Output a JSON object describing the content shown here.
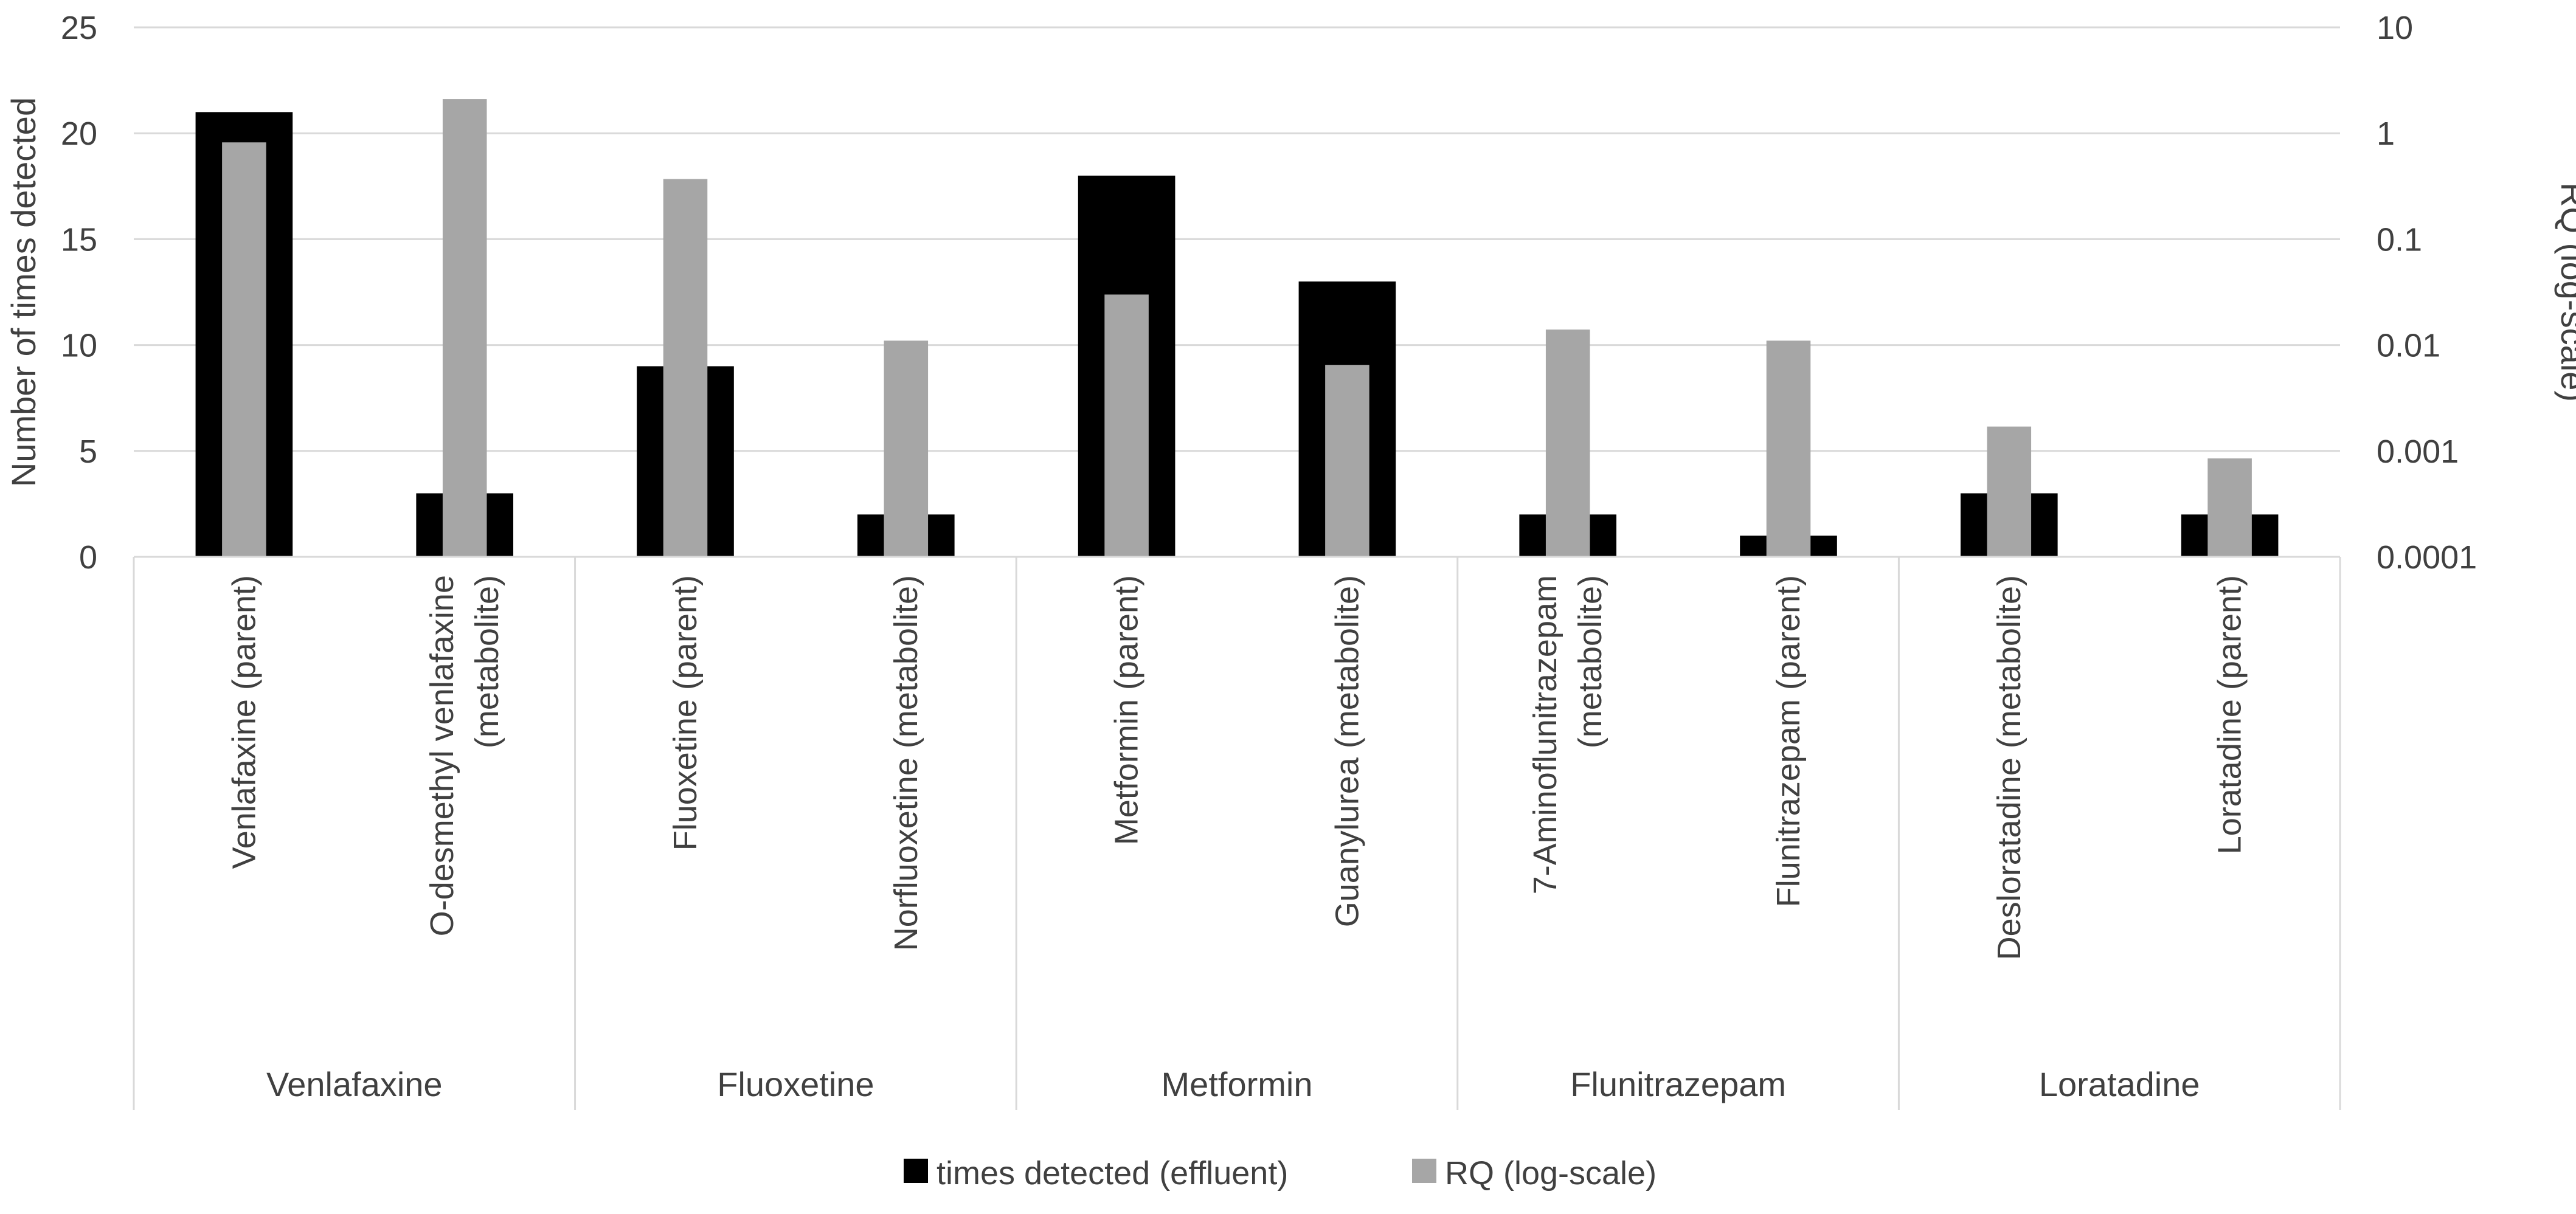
{
  "chart_data": {
    "type": "bar",
    "categories": [
      "Venlafaxine (parent)",
      "O-desmethyl venlafaxine (metabolite)",
      "Fluoxetine (parent)",
      "Norfluoxetine (metabolite)",
      "Metformin (parent)",
      "Guanylurea (metabolite)",
      "7-Aminoflunitrazepam (metabolite)",
      "Flunitrazepam (parent)",
      "Desloratadine (metabolite)",
      "Loratadine (parent)"
    ],
    "category_lines": [
      [
        "Venlafaxine (parent)"
      ],
      [
        "O-desmethyl venlafaxine",
        "(metabolite)"
      ],
      [
        "Fluoxetine (parent)"
      ],
      [
        "Norfluoxetine (metabolite)"
      ],
      [
        "Metformin (parent)"
      ],
      [
        "Guanylurea (metabolite)"
      ],
      [
        "7-Aminoflunitrazepam",
        "(metabolite)"
      ],
      [
        "Flunitrazepam (parent)"
      ],
      [
        "Desloratadine (metabolite)"
      ],
      [
        "Loratadine (parent)"
      ]
    ],
    "groups": [
      {
        "name": "Venlafaxine",
        "start": 0,
        "count": 2
      },
      {
        "name": "Fluoxetine",
        "start": 2,
        "count": 2
      },
      {
        "name": "Metformin",
        "start": 4,
        "count": 2
      },
      {
        "name": "Flunitrazepam",
        "start": 6,
        "count": 2
      },
      {
        "name": "Loratadine",
        "start": 8,
        "count": 2
      }
    ],
    "series": [
      {
        "name": "times detected (effluent)",
        "axis": "left",
        "color": "#000000",
        "values": [
          21,
          3,
          9,
          2,
          18,
          13,
          2,
          1,
          3,
          2
        ]
      },
      {
        "name": "RQ (log-scale)",
        "axis": "right",
        "color": "#a6a6a6",
        "values": [
          0.82,
          2.1,
          0.37,
          0.011,
          0.03,
          0.0065,
          0.014,
          0.011,
          0.0017,
          0.00085
        ]
      }
    ],
    "y_left": {
      "label": "Number of times detected",
      "min": 0,
      "max": 25,
      "ticks": [
        "0",
        "5",
        "10",
        "15",
        "20",
        "25"
      ]
    },
    "y_right": {
      "label": "RQ (log-scale)",
      "scale": "log",
      "min": 0.0001,
      "max": 10,
      "ticks": [
        "0.0001",
        "0.001",
        "0.01",
        "0.1",
        "1",
        "10"
      ]
    },
    "grid": true,
    "legend": "bottom-center",
    "gridline_color": "#d9d9d9"
  }
}
